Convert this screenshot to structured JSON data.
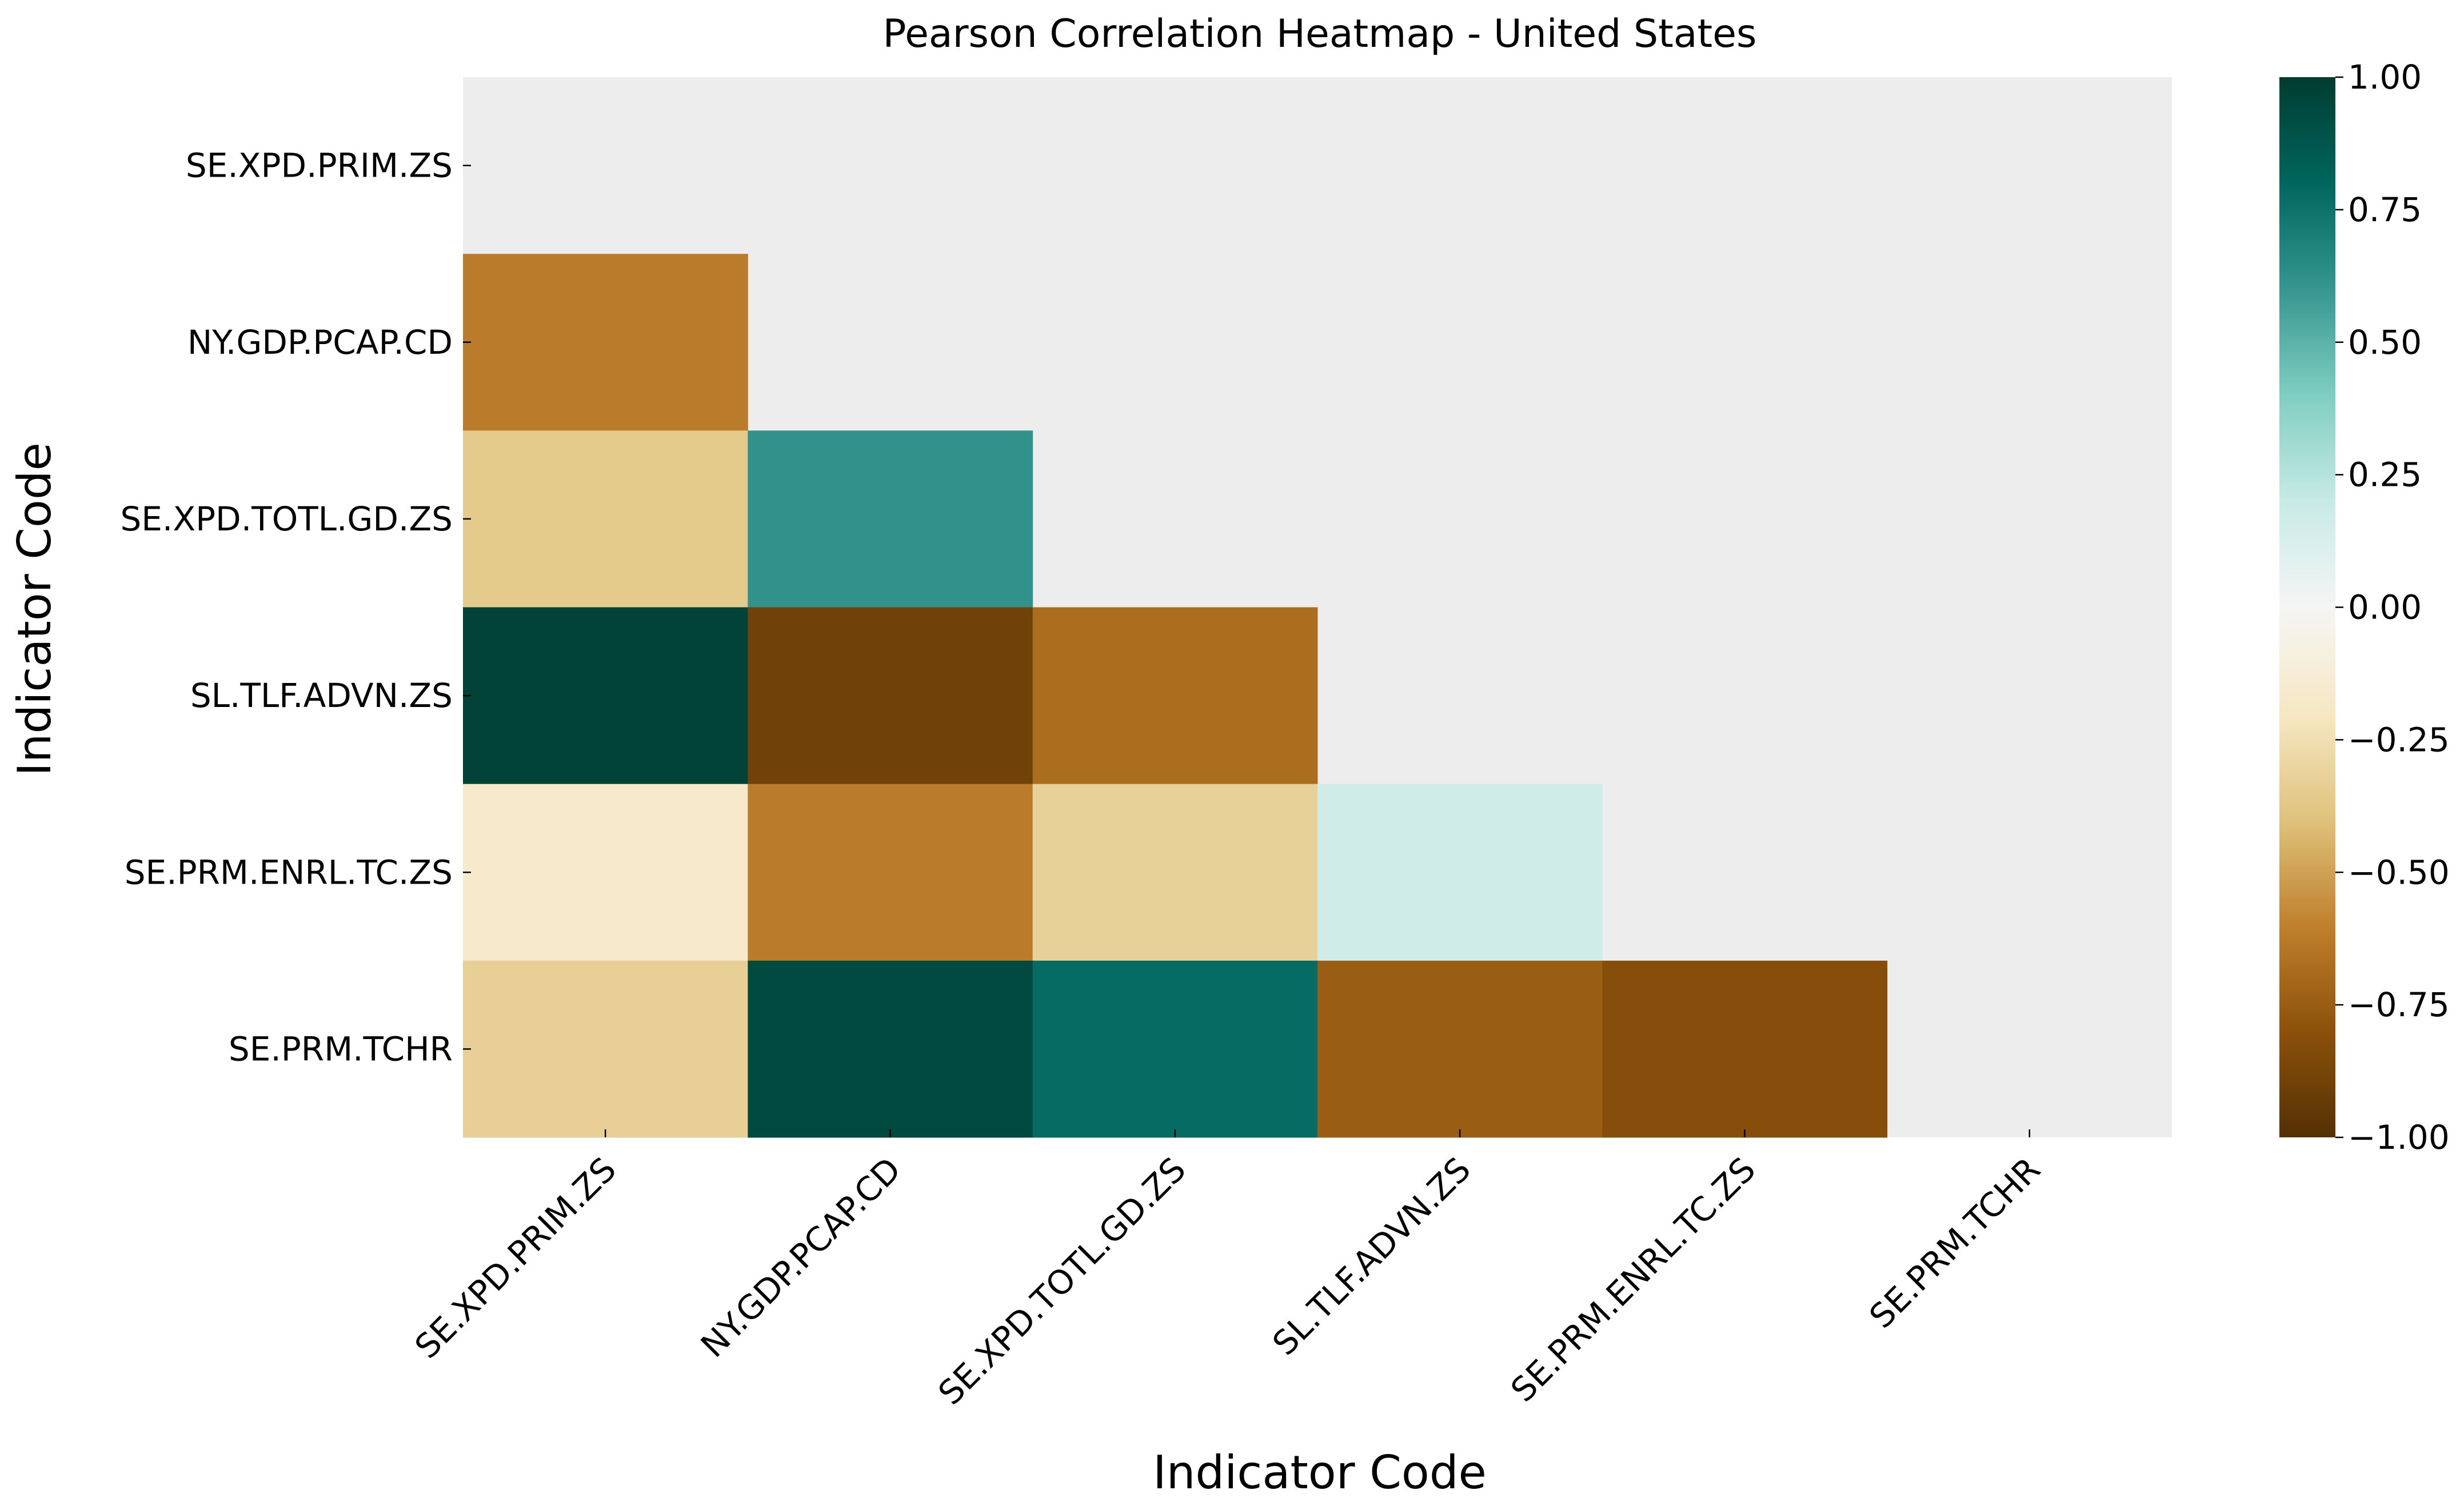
{
  "chart_data": {
    "type": "heatmap",
    "title": "Pearson Correlation Heatmap - United States",
    "xlabel": "Indicator Code",
    "ylabel": "Indicator Code",
    "categories": [
      "SE.XPD.PRIM.ZS",
      "NY.GDP.PCAP.CD",
      "SE.XPD.TOTL.GD.ZS",
      "SL.TLF.ADVN.ZS",
      "SE.PRM.ENRL.TC.ZS",
      "SE.PRM.TCHR"
    ],
    "mask": "upper-triangle-including-diagonal",
    "masked_color": "#ededed",
    "values": [
      [
        null,
        null,
        null,
        null,
        null,
        null
      ],
      [
        -0.62,
        null,
        null,
        null,
        null,
        null
      ],
      [
        -0.36,
        0.62,
        null,
        null,
        null,
        null
      ],
      [
        0.97,
        -0.9,
        -0.68,
        null,
        null,
        null
      ],
      [
        -0.17,
        -0.62,
        -0.32,
        0.16,
        null,
        null
      ],
      [
        -0.33,
        0.94,
        0.78,
        -0.75,
        -0.82,
        null
      ]
    ],
    "colorbar": {
      "range": [
        -1,
        1
      ],
      "ticks": [
        "1.00",
        "0.75",
        "0.50",
        "0.25",
        "0.00",
        "−0.25",
        "−0.50",
        "−0.75",
        "−1.00"
      ],
      "tick_values": [
        1,
        0.75,
        0.5,
        0.25,
        0,
        -0.25,
        -0.5,
        -0.75,
        -1
      ]
    },
    "colormap": "BrBG"
  }
}
